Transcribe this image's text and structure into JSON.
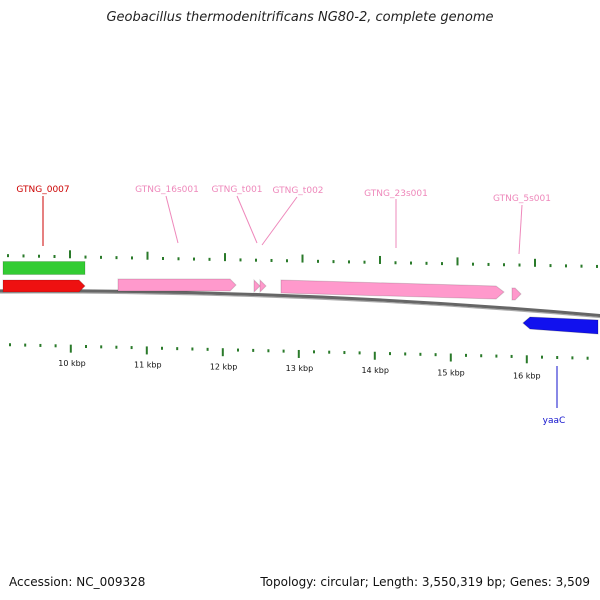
{
  "title": "Geobacillus thermodenitrificans NG80-2, complete genome",
  "footer": {
    "accession": "Accession: NC_009328",
    "stats": "Topology: circular; Length: 3,550,319 bp; Genes: 3,509"
  },
  "colors": {
    "cds_forward": "#ee1111",
    "gene_forward": "#33cc33",
    "rna": "#ff99cc",
    "cds_reverse": "#1111ee",
    "tick": "#2a7a2a",
    "backbone": "#888888"
  },
  "axis": {
    "tick_labels": [
      "10 kbp",
      "11 kbp",
      "12 kbp",
      "13 kbp",
      "14 kbp",
      "15 kbp",
      "16 kbp"
    ]
  },
  "features": [
    {
      "name": "gene-green-bar",
      "type": "gene",
      "strand": "+",
      "start_kbp": 9.2,
      "end_kbp": 10.2
    },
    {
      "name": "gtng-0007-cds",
      "type": "CDS",
      "strand": "+",
      "start_kbp": 9.2,
      "end_kbp": 10.2
    },
    {
      "name": "gtng-16s001-rna",
      "type": "rRNA",
      "strand": "+",
      "start_kbp": 10.6,
      "end_kbp": 12.2
    },
    {
      "name": "gtng-t001-rna",
      "type": "tRNA",
      "strand": "+",
      "start_kbp": 12.45,
      "end_kbp": 12.52
    },
    {
      "name": "gtng-t002-rna",
      "type": "tRNA",
      "strand": "+",
      "start_kbp": 12.53,
      "end_kbp": 12.62
    },
    {
      "name": "gtng-23s001-rna",
      "type": "rRNA",
      "strand": "+",
      "start_kbp": 12.75,
      "end_kbp": 15.7
    },
    {
      "name": "gtng-5s001-rna",
      "type": "rRNA",
      "strand": "+",
      "start_kbp": 15.8,
      "end_kbp": 15.9
    },
    {
      "name": "yaac-cds",
      "type": "CDS",
      "strand": "-",
      "start_kbp": 16.0,
      "end_kbp": 17.0
    }
  ],
  "labels": [
    {
      "text": "GTNG_0007",
      "color": "#cc0000"
    },
    {
      "text": "GTNG_16s001",
      "color": "#ee88bb"
    },
    {
      "text": "GTNG_t001",
      "color": "#ee88bb"
    },
    {
      "text": "GTNG_t002",
      "color": "#ee88bb"
    },
    {
      "text": "GTNG_23s001",
      "color": "#ee88bb"
    },
    {
      "text": "GTNG_5s001",
      "color": "#ee88bb"
    },
    {
      "text": "yaaC",
      "color": "#1111cc"
    }
  ]
}
